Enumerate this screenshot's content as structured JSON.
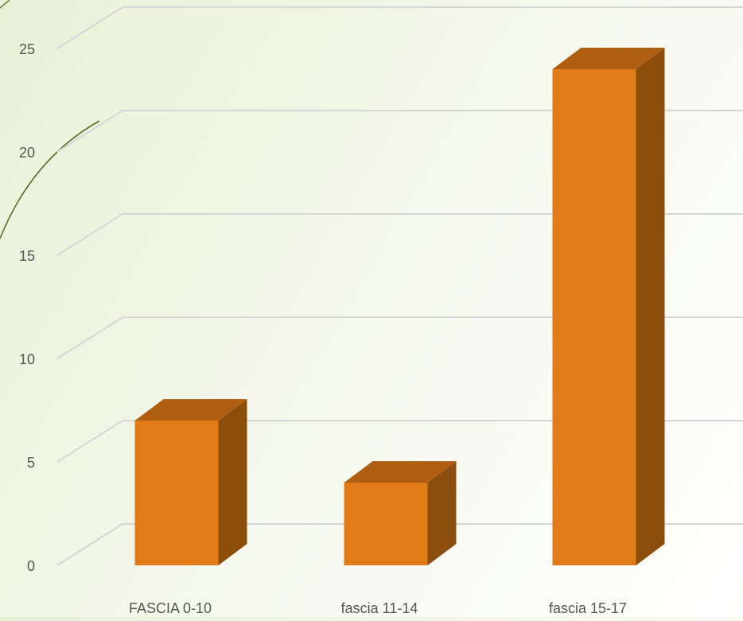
{
  "chart_data": {
    "type": "bar",
    "style": "3d-column",
    "categories": [
      "FASCIA 0-10",
      "fascia 11-14",
      "fascia 15-17"
    ],
    "series": [
      {
        "values": [
          7,
          4,
          24
        ]
      }
    ],
    "title": "",
    "xlabel": "",
    "ylabel": "",
    "ylim": [
      0,
      25
    ],
    "yticks": [
      0,
      5,
      10,
      15,
      20,
      25
    ],
    "grid": true,
    "legend": "none",
    "colors": {
      "front": "#E07B18",
      "top": "#B05F12",
      "side": "#8C4E0D",
      "grid": "#d6d6d6",
      "decor_line": "#5a6e2a"
    }
  }
}
